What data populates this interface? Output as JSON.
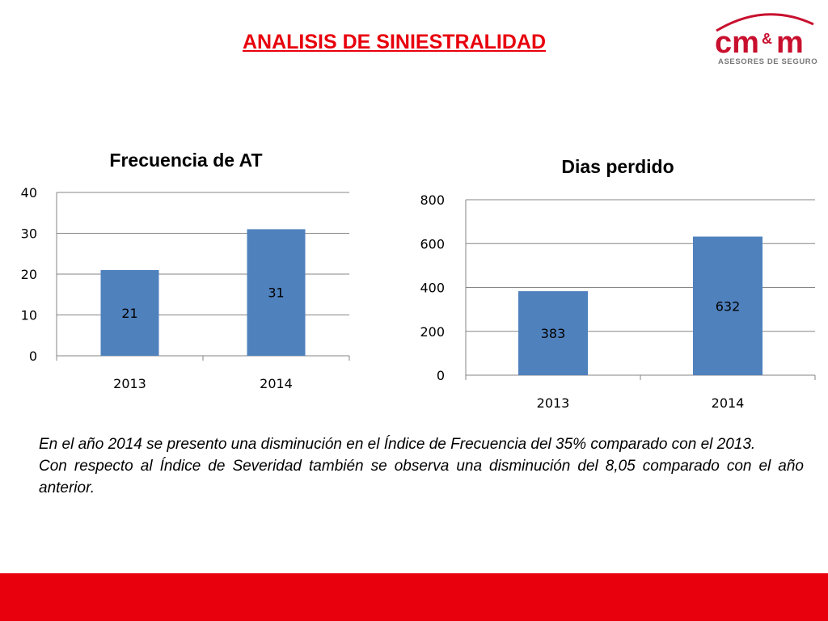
{
  "slide": {
    "title": "ANALISIS DE SINIESTRALIDAD"
  },
  "logo": {
    "brand": "cm&m",
    "tagline": "ASESORES DE SEGUROS",
    "accent": "#c8102e"
  },
  "colors": {
    "bar": "#4f81bd",
    "title_red": "#e8000d",
    "footer_red": "#e8000d"
  },
  "chart_data": [
    {
      "type": "bar",
      "title": "Frecuencia de AT",
      "categories": [
        "2013",
        "2014"
      ],
      "values": [
        21,
        31
      ],
      "ylim": [
        0,
        40
      ],
      "yticks": [
        0,
        10,
        20,
        30,
        40
      ],
      "grid": true,
      "legend": "none",
      "xlabel": "",
      "ylabel": ""
    },
    {
      "type": "bar",
      "title": "Dias perdido",
      "categories": [
        "2013",
        "2014"
      ],
      "values": [
        383,
        632
      ],
      "ylim": [
        0,
        800
      ],
      "yticks": [
        0,
        200,
        400,
        600,
        800
      ],
      "grid": true,
      "legend": "none",
      "xlabel": "",
      "ylabel": ""
    }
  ],
  "body": {
    "paragraph1": "En el año 2014 se presento una disminución en el Índice de Frecuencia del 35% comparado con el 2013.",
    "paragraph2": "Con respecto al Índice de Severidad también se observa una disminución del 8,05 comparado con el año anterior."
  }
}
